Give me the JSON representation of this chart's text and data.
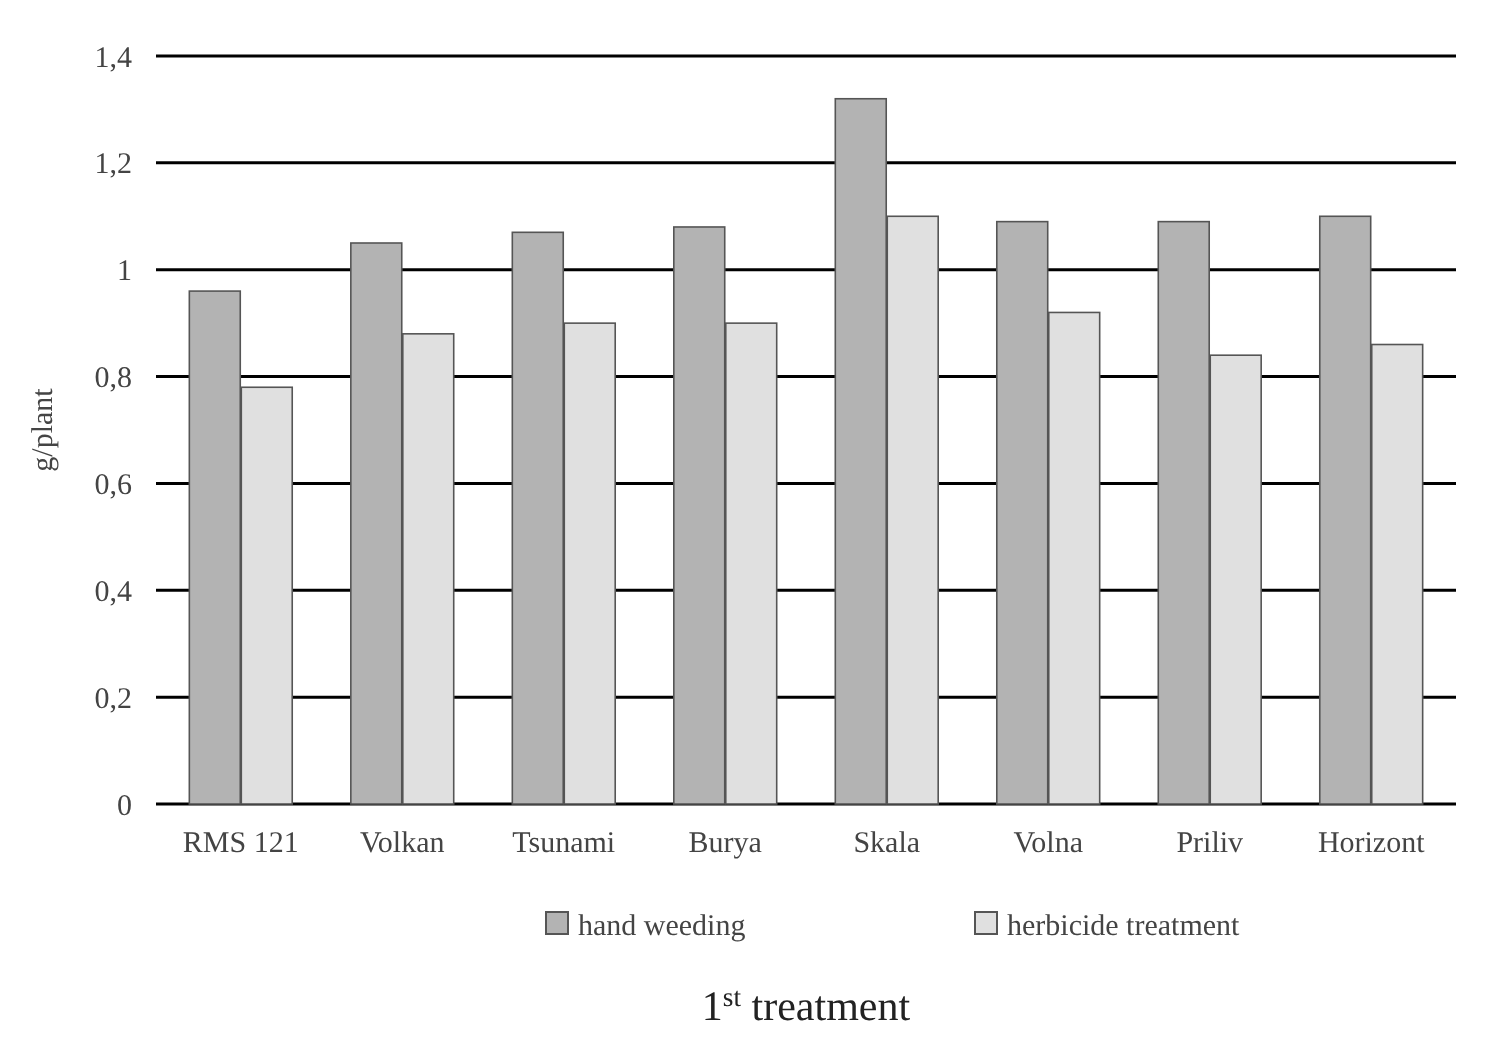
{
  "chart_data": {
    "type": "bar",
    "title": "1$^{st}$ treatment",
    "ylabel": "g/plant",
    "categories": [
      "RMS 121",
      "Volkan",
      "Tsunami",
      "Burya",
      "Skala",
      "Volna",
      "Priliv",
      "Horizont"
    ],
    "series": [
      {
        "name": "hand weeding",
        "color": "#b3b3b3",
        "values": [
          0.96,
          1.05,
          1.07,
          1.08,
          1.32,
          1.09,
          1.09,
          1.1
        ]
      },
      {
        "name": "herbicide treatment",
        "color": "#e0e0e0",
        "values": [
          0.78,
          0.88,
          0.9,
          0.9,
          1.1,
          0.92,
          0.84,
          0.86
        ]
      }
    ],
    "ylim": [
      0,
      1.4
    ],
    "yticks": [
      0,
      {
        "value": 0.2,
        "label": "0,2"
      },
      {
        "value": 0.4,
        "label": "0,4"
      },
      {
        "value": 0.6,
        "label": "0,6"
      },
      {
        "value": 0.8,
        "label": "0,8"
      },
      1,
      {
        "value": 1.2,
        "label": "1,2"
      },
      {
        "value": 1.4,
        "label": "1,4"
      }
    ],
    "grid": "y",
    "legend": "bottom"
  }
}
